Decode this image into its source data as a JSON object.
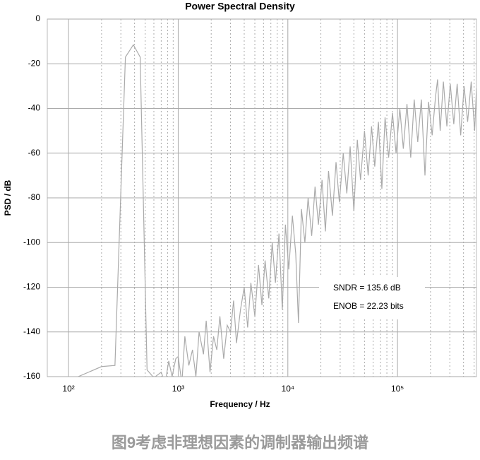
{
  "chart_data": {
    "type": "line",
    "title": "Power Spectral Density",
    "x_label": "Frequency / Hz",
    "y_label": "PSD / dB",
    "log_x": true,
    "grid": true,
    "xlim": [
      64,
      525000
    ],
    "ylim": [
      -160,
      0
    ],
    "xticks": [
      {
        "value": 100,
        "label": "10²"
      },
      {
        "value": 1000,
        "label": "10³"
      },
      {
        "value": 10000,
        "label": "10⁴"
      },
      {
        "value": 100000,
        "label": "10⁵"
      }
    ],
    "xminorticks": [
      200,
      300,
      400,
      500,
      600,
      700,
      800,
      900,
      2000,
      3000,
      4000,
      5000,
      6000,
      7000,
      8000,
      9000,
      20000,
      30000,
      40000,
      50000,
      60000,
      70000,
      80000,
      90000,
      200000,
      300000,
      400000,
      500000
    ],
    "yticks": [
      0,
      -20,
      -40,
      -60,
      -80,
      -100,
      -120,
      -140,
      -160
    ],
    "annotations": [
      "SNDR = 135.6 dB",
      "ENOB = 22.23 bits"
    ],
    "caption": "图9考虑非理想因素的调制器输出频谱",
    "series": [
      {
        "name": "PSD",
        "color": "#aaaaaa",
        "x": [
          110,
          200,
          265,
          330,
          390,
          450,
          520,
          600,
          700,
          760,
          820,
          880,
          950,
          1000,
          1080,
          1150,
          1250,
          1350,
          1450,
          1550,
          1700,
          1800,
          1950,
          2100,
          2250,
          2400,
          2600,
          2800,
          3000,
          3200,
          3400,
          3700,
          4000,
          4300,
          4600,
          5000,
          5400,
          5800,
          6200,
          6700,
          7200,
          7700,
          8300,
          8900,
          9500,
          10200,
          11000,
          11800,
          12500,
          13300,
          14300,
          15300,
          16500,
          17700,
          19000,
          20500,
          22000,
          23500,
          25500,
          27500,
          29500,
          32000,
          34500,
          37000,
          40000,
          43000,
          46000,
          50000,
          54000,
          58000,
          62000,
          67000,
          72000,
          77000,
          83000,
          90000,
          97000,
          105000,
          113000,
          122000,
          132000,
          142000,
          153000,
          165000,
          178000,
          192000,
          207000,
          222000,
          232000,
          245000,
          262000,
          282000,
          303000,
          326000,
          350000,
          377000,
          405000,
          436000,
          470000,
          505000,
          525000
        ],
        "values": [
          -161,
          -155.5,
          -155,
          -17,
          -11.5,
          -17,
          -157,
          -160.5,
          -158,
          -163,
          -153,
          -160,
          -152,
          -151,
          -163,
          -142,
          -155,
          -148,
          -160,
          -140,
          -150,
          -135,
          -158,
          -142,
          -148,
          -133,
          -152,
          -137,
          -140,
          -126,
          -145,
          -130,
          -120,
          -138,
          -118,
          -133,
          -110,
          -128,
          -108,
          -125,
          -100,
          -118,
          -96,
          -130,
          -92,
          -112,
          -88,
          -105,
          -136,
          -85,
          -100,
          -80,
          -97,
          -75,
          -92,
          -72,
          -95,
          -68,
          -88,
          -64,
          -82,
          -60,
          -78,
          -57,
          -86,
          -54,
          -72,
          -50,
          -70,
          -48,
          -66,
          -46,
          -76,
          -44,
          -62,
          -42,
          -60,
          -40,
          -58,
          -38,
          -62,
          -36,
          -55,
          -36,
          -70,
          -37,
          -52,
          -35,
          -27,
          -50,
          -28,
          -48,
          -29,
          -47,
          -29,
          -52,
          -30,
          -46,
          -28,
          -50,
          -31
        ]
      }
    ]
  }
}
